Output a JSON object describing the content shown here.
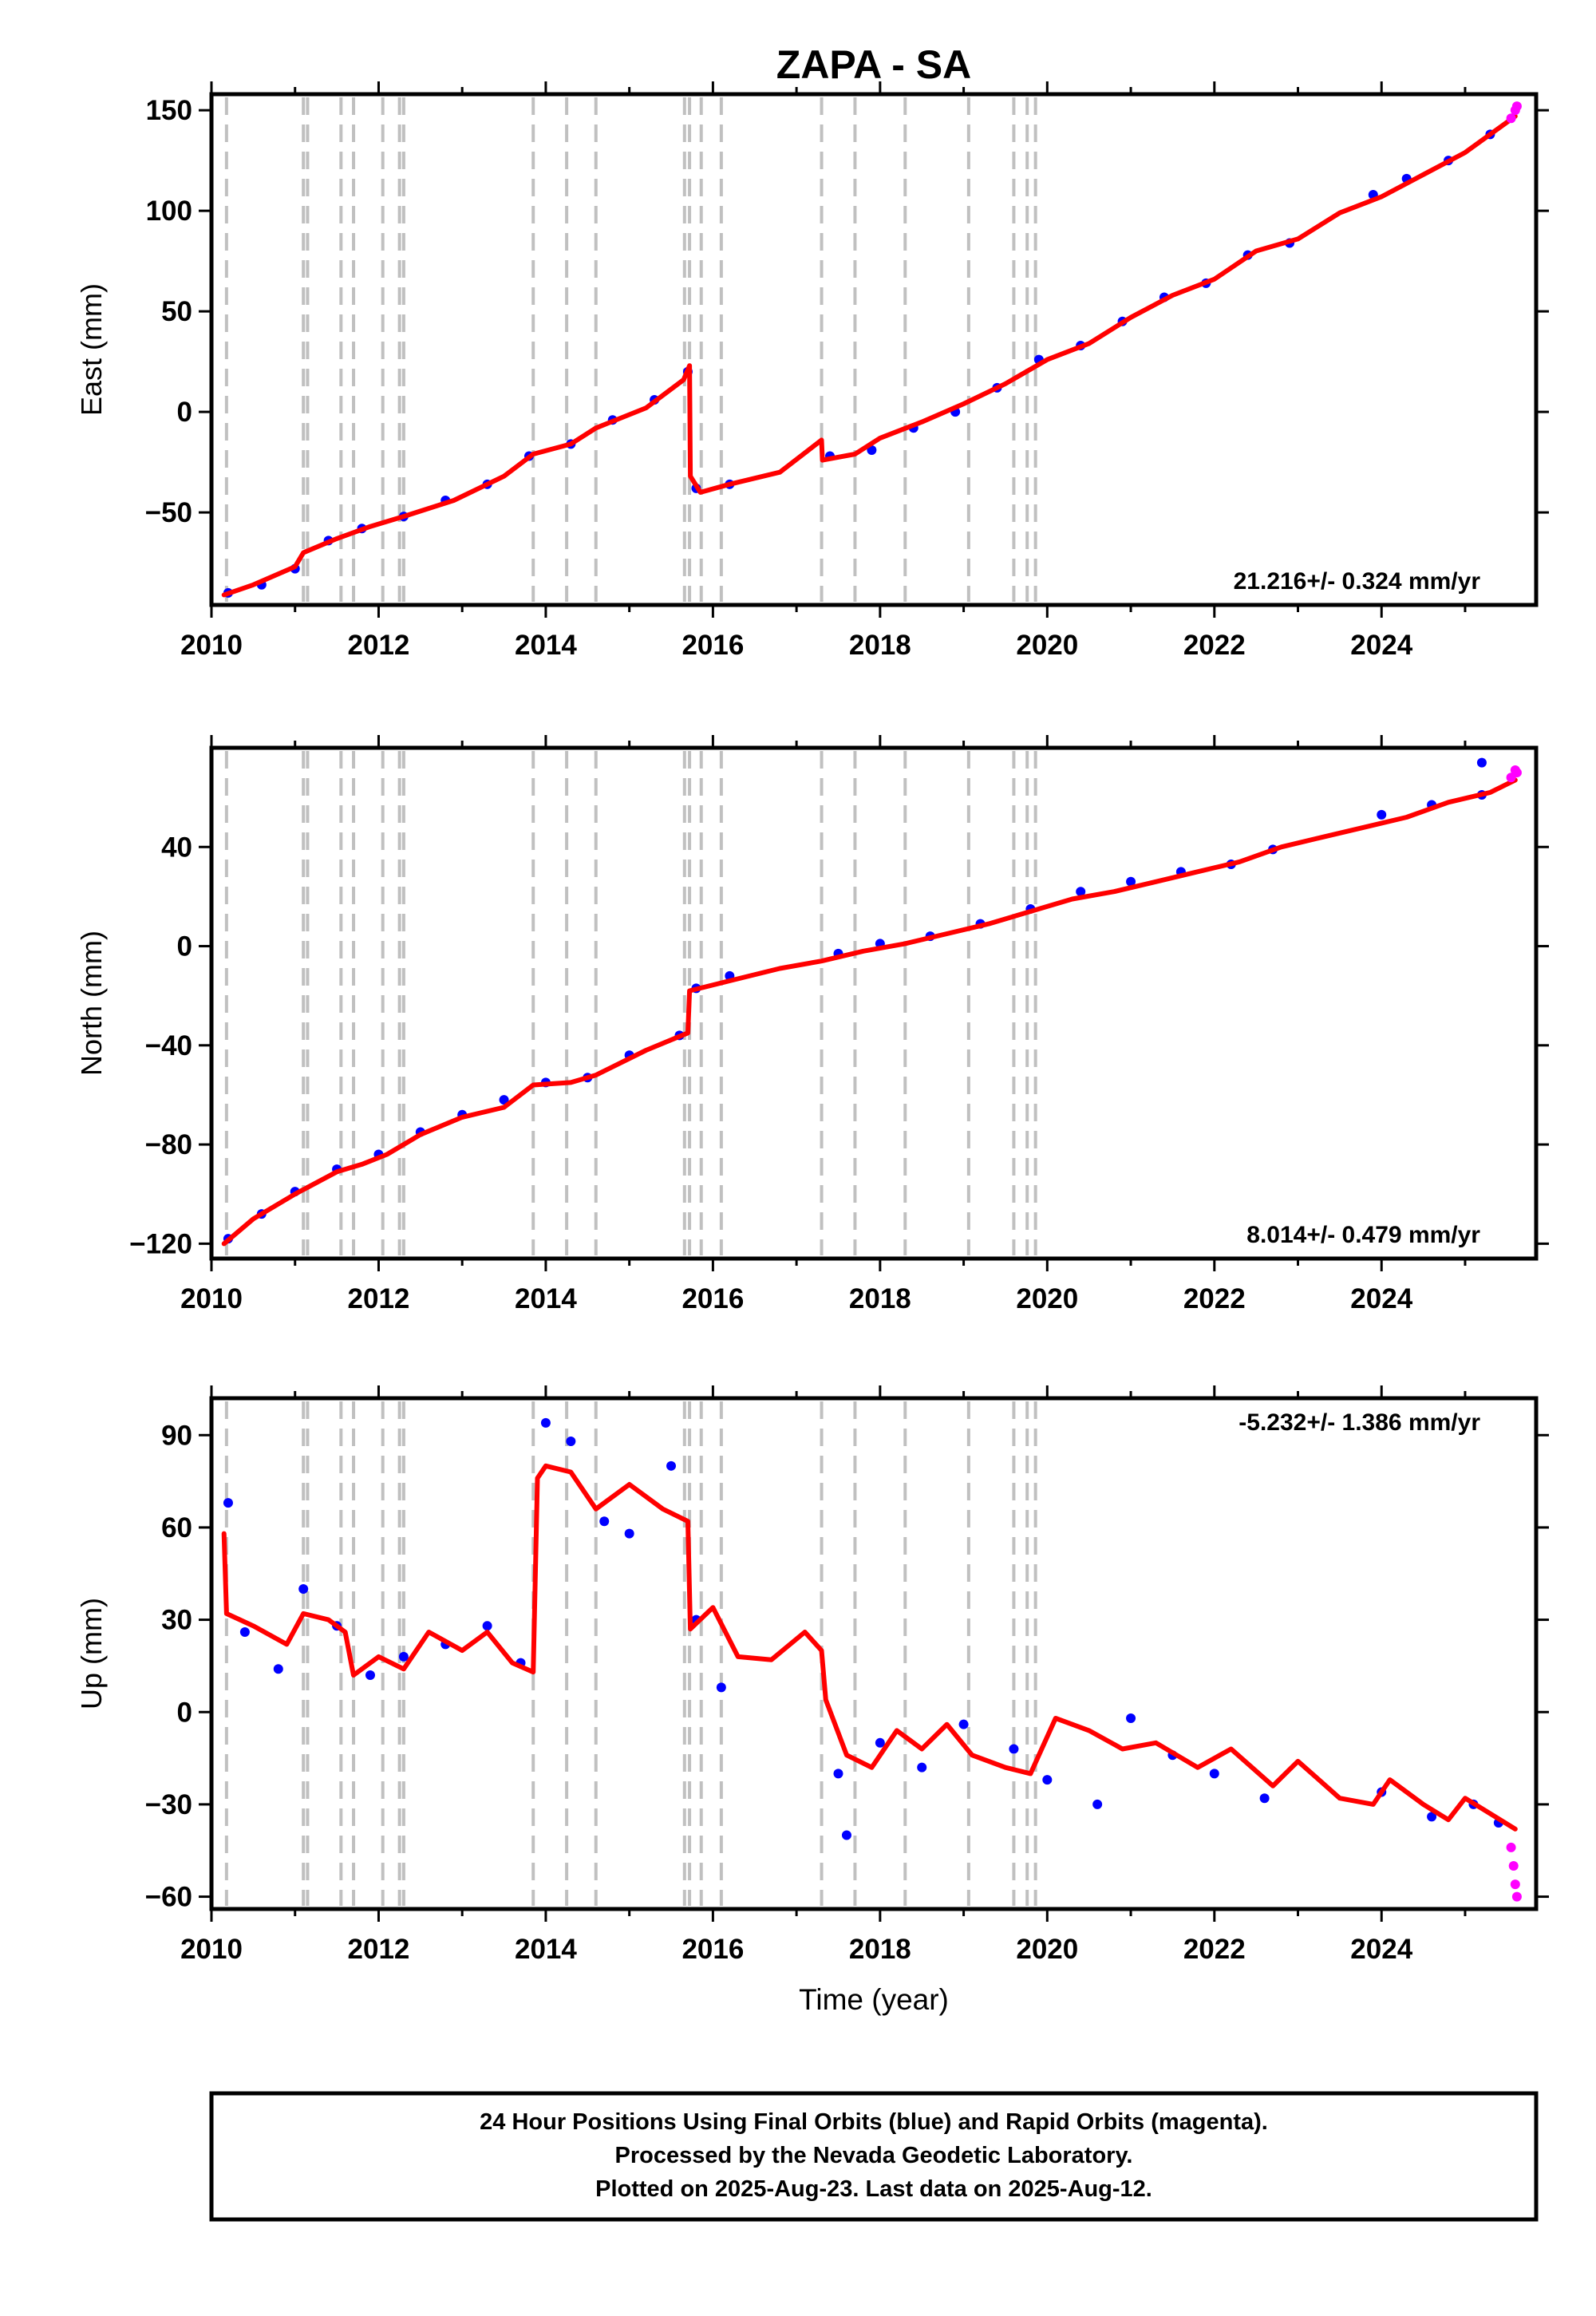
{
  "title": "ZAPA - SA",
  "xlabel": "Time (year)",
  "colors": {
    "final": "#0000ff",
    "rapid": "#ff00ff",
    "model": "#ff0000",
    "event_lines": "#c0c0c0"
  },
  "footer": {
    "line1": "24 Hour Positions Using Final Orbits (blue) and Rapid Orbits (magenta).",
    "line2": "Processed by the Nevada Geodetic Laboratory.",
    "line3": "Plotted on 2025-Aug-23. Last data on 2025-Aug-12."
  },
  "chart_data": [
    {
      "type": "scatter",
      "ylabel": "East (mm)",
      "rate_label": "21.216+/- 0.324 mm/yr",
      "xlim": [
        2010.0,
        2025.85
      ],
      "ylim": [
        -96,
        158
      ],
      "xticks": [
        2010,
        2012,
        2014,
        2016,
        2018,
        2020,
        2022,
        2024
      ],
      "xtick_labels": [
        "2010",
        "2012",
        "2014",
        "2016",
        "2018",
        "2020",
        "2022",
        "2024"
      ],
      "yticks": [
        -50,
        0,
        50,
        100,
        150
      ],
      "ytick_labels": [
        "−50",
        "0",
        "50",
        "100",
        "150"
      ],
      "model_line": [
        [
          2010.15,
          -91
        ],
        [
          2010.5,
          -86
        ],
        [
          2011.0,
          -77
        ],
        [
          2011.1,
          -70
        ],
        [
          2011.5,
          -63
        ],
        [
          2011.9,
          -57
        ],
        [
          2012.3,
          -52
        ],
        [
          2012.9,
          -44
        ],
        [
          2013.5,
          -32
        ],
        [
          2013.85,
          -21
        ],
        [
          2014.3,
          -16
        ],
        [
          2014.6,
          -8
        ],
        [
          2015.2,
          2
        ],
        [
          2015.65,
          16
        ],
        [
          2015.72,
          23
        ],
        [
          2015.73,
          -32
        ],
        [
          2015.85,
          -40
        ],
        [
          2016.2,
          -36
        ],
        [
          2016.8,
          -30
        ],
        [
          2017.3,
          -14
        ],
        [
          2017.31,
          -24
        ],
        [
          2017.7,
          -21
        ],
        [
          2018.0,
          -13
        ],
        [
          2018.5,
          -5
        ],
        [
          2019.0,
          4
        ],
        [
          2019.5,
          14
        ],
        [
          2020.0,
          26
        ],
        [
          2020.5,
          34
        ],
        [
          2021.0,
          47
        ],
        [
          2021.5,
          58
        ],
        [
          2022.0,
          66
        ],
        [
          2022.5,
          80
        ],
        [
          2023.0,
          86
        ],
        [
          2023.5,
          99
        ],
        [
          2024.0,
          107
        ],
        [
          2024.5,
          118
        ],
        [
          2025.0,
          129
        ],
        [
          2025.6,
          147
        ]
      ],
      "final_points": [
        [
          2010.2,
          -90
        ],
        [
          2010.6,
          -86
        ],
        [
          2011.0,
          -78
        ],
        [
          2011.4,
          -64
        ],
        [
          2011.8,
          -58
        ],
        [
          2012.3,
          -52
        ],
        [
          2012.8,
          -44
        ],
        [
          2013.3,
          -36
        ],
        [
          2013.8,
          -22
        ],
        [
          2014.3,
          -16
        ],
        [
          2014.8,
          -4
        ],
        [
          2015.3,
          6
        ],
        [
          2015.7,
          20
        ],
        [
          2015.8,
          -38
        ],
        [
          2016.2,
          -36
        ],
        [
          2017.4,
          -22
        ],
        [
          2017.9,
          -19
        ],
        [
          2018.4,
          -8
        ],
        [
          2018.9,
          0
        ],
        [
          2019.4,
          12
        ],
        [
          2019.9,
          26
        ],
        [
          2020.4,
          33
        ],
        [
          2020.9,
          45
        ],
        [
          2021.4,
          57
        ],
        [
          2021.9,
          64
        ],
        [
          2022.4,
          78
        ],
        [
          2022.9,
          84
        ],
        [
          2023.9,
          108
        ],
        [
          2024.3,
          116
        ],
        [
          2024.8,
          125
        ],
        [
          2025.3,
          138
        ]
      ],
      "rapid_points": [
        [
          2025.55,
          146
        ],
        [
          2025.6,
          150
        ],
        [
          2025.62,
          152
        ]
      ]
    },
    {
      "type": "scatter",
      "ylabel": "North (mm)",
      "rate_label": "8.014+/- 0.479 mm/yr",
      "xlim": [
        2010.0,
        2025.85
      ],
      "ylim": [
        -126,
        80
      ],
      "xticks": [
        2010,
        2012,
        2014,
        2016,
        2018,
        2020,
        2022,
        2024
      ],
      "xtick_labels": [
        "2010",
        "2012",
        "2014",
        "2016",
        "2018",
        "2020",
        "2022",
        "2024"
      ],
      "yticks": [
        -120,
        -80,
        -40,
        0,
        40
      ],
      "ytick_labels": [
        "−120",
        "−80",
        "−40",
        "0",
        "40"
      ],
      "model_line": [
        [
          2010.15,
          -120
        ],
        [
          2010.5,
          -110
        ],
        [
          2011.0,
          -100
        ],
        [
          2011.5,
          -91
        ],
        [
          2011.8,
          -88
        ],
        [
          2012.1,
          -84
        ],
        [
          2012.5,
          -76
        ],
        [
          2013.0,
          -69
        ],
        [
          2013.5,
          -65
        ],
        [
          2013.85,
          -56
        ],
        [
          2014.3,
          -55
        ],
        [
          2014.6,
          -52
        ],
        [
          2015.2,
          -42
        ],
        [
          2015.7,
          -35
        ],
        [
          2015.72,
          -18
        ],
        [
          2016.2,
          -14
        ],
        [
          2016.8,
          -9
        ],
        [
          2017.3,
          -6
        ],
        [
          2017.8,
          -2
        ],
        [
          2018.3,
          1
        ],
        [
          2018.8,
          5
        ],
        [
          2019.3,
          9
        ],
        [
          2019.8,
          14
        ],
        [
          2020.3,
          19
        ],
        [
          2020.8,
          22
        ],
        [
          2021.3,
          26
        ],
        [
          2021.8,
          30
        ],
        [
          2022.3,
          34
        ],
        [
          2022.8,
          40
        ],
        [
          2023.3,
          44
        ],
        [
          2023.8,
          48
        ],
        [
          2024.3,
          52
        ],
        [
          2024.8,
          58
        ],
        [
          2025.3,
          62
        ],
        [
          2025.6,
          67
        ]
      ],
      "final_points": [
        [
          2010.2,
          -118
        ],
        [
          2010.6,
          -108
        ],
        [
          2011.0,
          -99
        ],
        [
          2011.5,
          -90
        ],
        [
          2012.0,
          -84
        ],
        [
          2012.5,
          -75
        ],
        [
          2013.0,
          -68
        ],
        [
          2013.5,
          -62
        ],
        [
          2014.0,
          -55
        ],
        [
          2014.5,
          -53
        ],
        [
          2015.0,
          -44
        ],
        [
          2015.6,
          -36
        ],
        [
          2015.8,
          -17
        ],
        [
          2016.2,
          -12
        ],
        [
          2017.5,
          -3
        ],
        [
          2018.0,
          1
        ],
        [
          2018.6,
          4
        ],
        [
          2019.2,
          9
        ],
        [
          2019.8,
          15
        ],
        [
          2020.4,
          22
        ],
        [
          2021.0,
          26
        ],
        [
          2021.6,
          30
        ],
        [
          2022.2,
          33
        ],
        [
          2022.7,
          39
        ],
        [
          2024.0,
          53
        ],
        [
          2024.6,
          57
        ],
        [
          2025.2,
          61
        ],
        [
          2025.2,
          74
        ]
      ],
      "rapid_points": [
        [
          2025.55,
          68
        ],
        [
          2025.6,
          71
        ],
        [
          2025.62,
          70
        ]
      ]
    },
    {
      "type": "scatter",
      "ylabel": "Up (mm)",
      "rate_label": "-5.232+/- 1.386 mm/yr",
      "xlim": [
        2010.0,
        2025.85
      ],
      "ylim": [
        -64,
        102
      ],
      "xticks": [
        2010,
        2012,
        2014,
        2016,
        2018,
        2020,
        2022,
        2024
      ],
      "xtick_labels": [
        "2010",
        "2012",
        "2014",
        "2016",
        "2018",
        "2020",
        "2022",
        "2024"
      ],
      "yticks": [
        -60,
        -30,
        0,
        30,
        60,
        90
      ],
      "ytick_labels": [
        "−60",
        "−30",
        "0",
        "30",
        "60",
        "90"
      ],
      "model_line": [
        [
          2010.15,
          58
        ],
        [
          2010.18,
          32
        ],
        [
          2010.5,
          28
        ],
        [
          2010.9,
          22
        ],
        [
          2011.1,
          32
        ],
        [
          2011.4,
          30
        ],
        [
          2011.6,
          26
        ],
        [
          2011.7,
          12
        ],
        [
          2012.0,
          18
        ],
        [
          2012.3,
          14
        ],
        [
          2012.6,
          26
        ],
        [
          2013.0,
          20
        ],
        [
          2013.3,
          26
        ],
        [
          2013.6,
          16
        ],
        [
          2013.85,
          13
        ],
        [
          2013.9,
          76
        ],
        [
          2014.0,
          80
        ],
        [
          2014.3,
          78
        ],
        [
          2014.6,
          66
        ],
        [
          2015.0,
          74
        ],
        [
          2015.4,
          66
        ],
        [
          2015.7,
          62
        ],
        [
          2015.73,
          27
        ],
        [
          2016.0,
          34
        ],
        [
          2016.3,
          18
        ],
        [
          2016.7,
          17
        ],
        [
          2017.1,
          26
        ],
        [
          2017.3,
          20
        ],
        [
          2017.35,
          4
        ],
        [
          2017.6,
          -14
        ],
        [
          2017.9,
          -18
        ],
        [
          2018.2,
          -6
        ],
        [
          2018.5,
          -12
        ],
        [
          2018.8,
          -4
        ],
        [
          2019.1,
          -14
        ],
        [
          2019.5,
          -18
        ],
        [
          2019.8,
          -20
        ],
        [
          2020.1,
          -2
        ],
        [
          2020.5,
          -6
        ],
        [
          2020.9,
          -12
        ],
        [
          2021.3,
          -10
        ],
        [
          2021.8,
          -18
        ],
        [
          2022.2,
          -12
        ],
        [
          2022.7,
          -24
        ],
        [
          2023.0,
          -16
        ],
        [
          2023.5,
          -28
        ],
        [
          2023.9,
          -30
        ],
        [
          2024.1,
          -22
        ],
        [
          2024.5,
          -30
        ],
        [
          2024.8,
          -35
        ],
        [
          2025.0,
          -28
        ],
        [
          2025.6,
          -38
        ]
      ],
      "final_points": [
        [
          2010.2,
          68
        ],
        [
          2010.4,
          26
        ],
        [
          2010.8,
          14
        ],
        [
          2011.1,
          40
        ],
        [
          2011.5,
          28
        ],
        [
          2011.9,
          12
        ],
        [
          2012.3,
          18
        ],
        [
          2012.8,
          22
        ],
        [
          2013.3,
          28
        ],
        [
          2013.7,
          16
        ],
        [
          2014.0,
          94
        ],
        [
          2014.3,
          88
        ],
        [
          2014.7,
          62
        ],
        [
          2015.0,
          58
        ],
        [
          2015.5,
          80
        ],
        [
          2015.8,
          30
        ],
        [
          2016.1,
          8
        ],
        [
          2017.5,
          -20
        ],
        [
          2017.6,
          -40
        ],
        [
          2018.0,
          -10
        ],
        [
          2018.5,
          -18
        ],
        [
          2019.0,
          -4
        ],
        [
          2019.6,
          -12
        ],
        [
          2020.0,
          -22
        ],
        [
          2020.6,
          -30
        ],
        [
          2021.0,
          -2
        ],
        [
          2021.5,
          -14
        ],
        [
          2022.0,
          -20
        ],
        [
          2022.6,
          -28
        ],
        [
          2024.0,
          -26
        ],
        [
          2024.6,
          -34
        ],
        [
          2025.1,
          -30
        ],
        [
          2025.4,
          -36
        ]
      ],
      "rapid_points": [
        [
          2025.55,
          -44
        ],
        [
          2025.58,
          -50
        ],
        [
          2025.6,
          -56
        ],
        [
          2025.62,
          -60
        ]
      ]
    }
  ],
  "event_lines": [
    2010.18,
    2011.1,
    2011.15,
    2011.55,
    2011.7,
    2012.05,
    2012.25,
    2012.3,
    2013.85,
    2014.25,
    2014.6,
    2015.66,
    2015.72,
    2015.86,
    2016.1,
    2017.3,
    2017.7,
    2018.3,
    2019.06,
    2019.6,
    2019.76,
    2019.86
  ]
}
